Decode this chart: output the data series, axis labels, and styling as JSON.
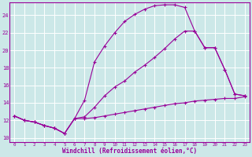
{
  "xlabel": "Windchill (Refroidissement éolien,°C)",
  "bg_color": "#cce8e8",
  "line_color": "#990099",
  "grid_color": "#ffffff",
  "ylim": [
    9.5,
    25.5
  ],
  "xlim": [
    -0.5,
    23.5
  ],
  "yticks": [
    10,
    12,
    14,
    16,
    18,
    20,
    22,
    24
  ],
  "xticks": [
    0,
    1,
    2,
    3,
    4,
    5,
    6,
    7,
    8,
    9,
    10,
    11,
    12,
    13,
    14,
    15,
    16,
    17,
    18,
    19,
    20,
    21,
    22,
    23
  ],
  "line1_x": [
    0,
    1,
    2,
    3,
    4,
    5,
    6,
    7,
    8,
    9,
    10,
    11,
    12,
    13,
    14,
    15,
    16,
    17,
    18,
    19,
    20,
    21,
    22,
    23
  ],
  "line1_y": [
    12.5,
    12.0,
    11.8,
    11.4,
    11.1,
    10.5,
    12.2,
    14.3,
    18.7,
    20.5,
    22.0,
    23.3,
    24.1,
    24.7,
    25.1,
    25.2,
    25.2,
    24.9,
    22.2,
    20.3,
    20.3,
    17.8,
    15.0,
    14.8
  ],
  "line2_x": [
    0,
    1,
    2,
    3,
    4,
    5,
    6,
    7,
    8,
    9,
    10,
    11,
    12,
    13,
    14,
    15,
    16,
    17,
    18,
    19,
    20,
    21,
    22,
    23
  ],
  "line2_y": [
    12.5,
    12.0,
    11.8,
    11.4,
    11.1,
    10.5,
    12.2,
    12.4,
    13.5,
    14.8,
    15.8,
    16.5,
    17.5,
    18.3,
    19.2,
    20.2,
    21.3,
    22.2,
    22.2,
    20.3,
    20.3,
    17.8,
    15.0,
    14.8
  ],
  "line3_x": [
    0,
    1,
    2,
    3,
    4,
    5,
    6,
    7,
    8,
    9,
    10,
    11,
    12,
    13,
    14,
    15,
    16,
    17,
    18,
    19,
    20,
    21,
    22,
    23
  ],
  "line3_y": [
    12.5,
    12.0,
    11.8,
    11.4,
    11.1,
    10.5,
    12.2,
    12.2,
    12.3,
    12.5,
    12.7,
    12.9,
    13.1,
    13.3,
    13.5,
    13.7,
    13.9,
    14.0,
    14.2,
    14.3,
    14.4,
    14.5,
    14.5,
    14.7
  ]
}
